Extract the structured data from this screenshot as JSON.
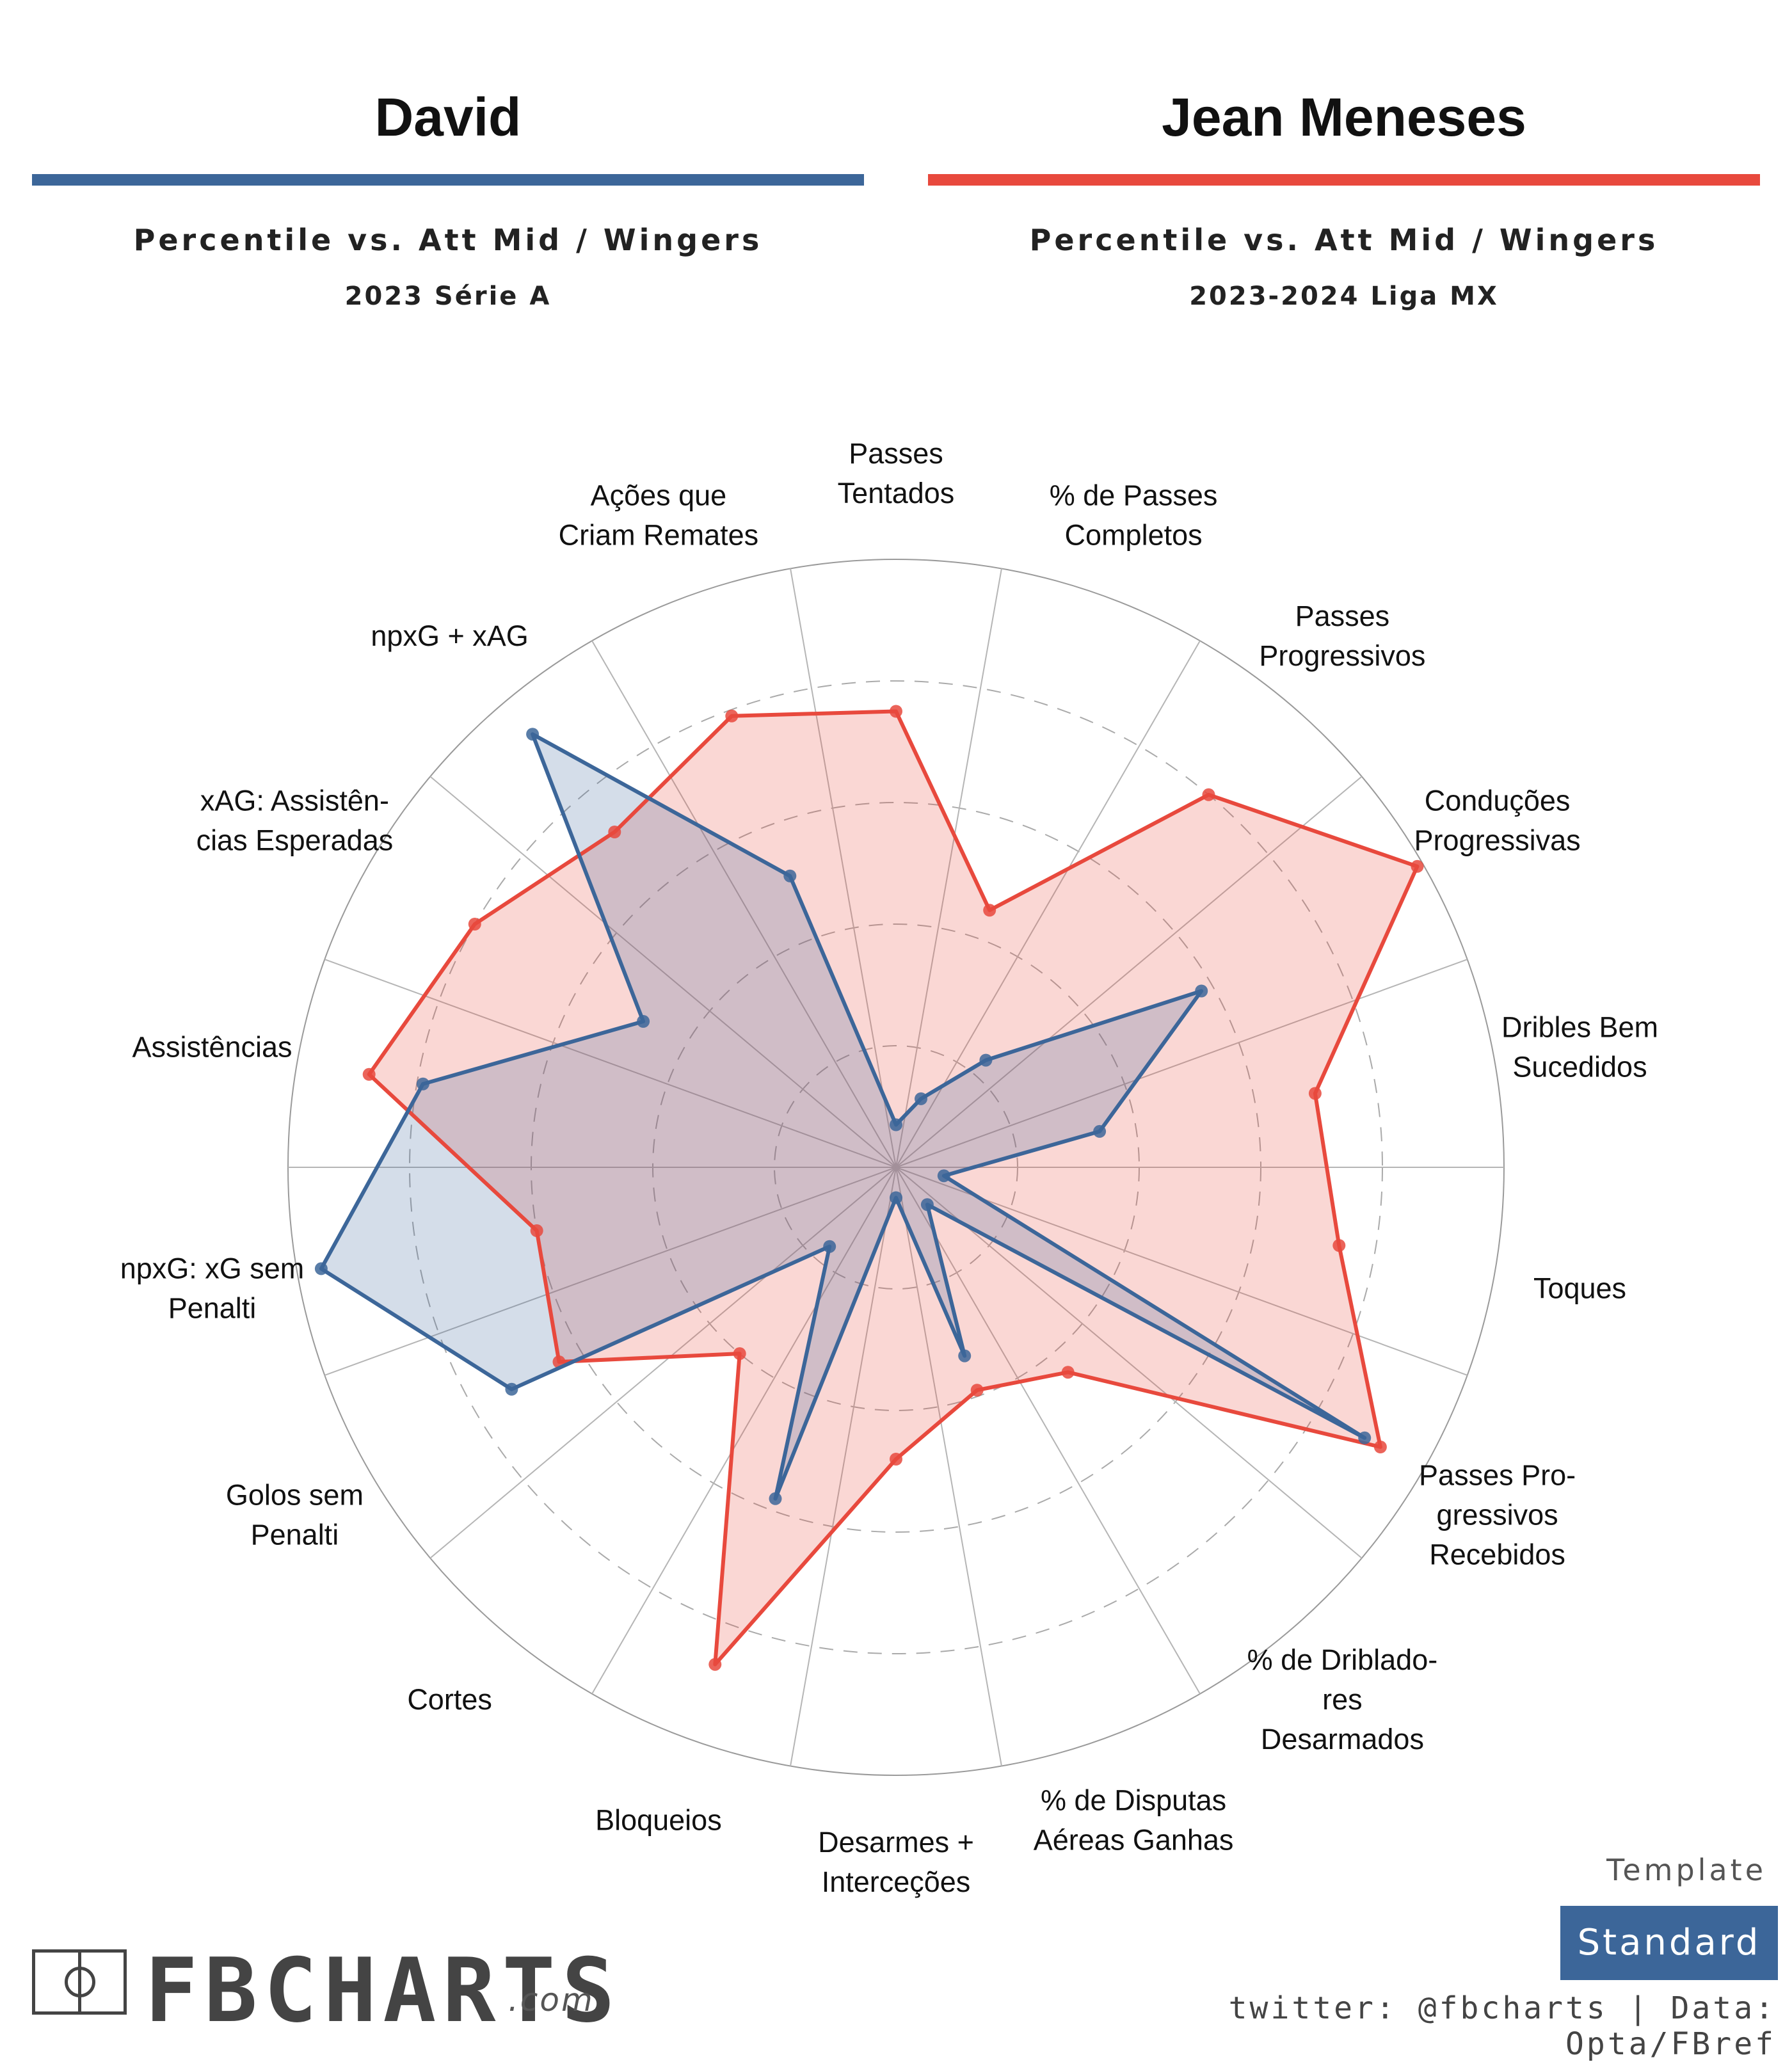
{
  "players": [
    {
      "name": "David",
      "subtitle": "Percentile vs. Att Mid / Wingers",
      "season": "2023 Série A",
      "color": "#3c6699"
    },
    {
      "name": "Jean Meneses",
      "subtitle": "Percentile vs. Att Mid / Wingers",
      "season": "2023-2024 Liga MX",
      "color": "#e8493d"
    }
  ],
  "chart_data": {
    "type": "radar",
    "rlim": [
      0,
      100
    ],
    "grid_rings": [
      20,
      40,
      60,
      80
    ],
    "categories": [
      [
        "Dribles Bem",
        "Sucedidos"
      ],
      [
        "Conduções",
        "Progressivas"
      ],
      [
        "Passes",
        "Progressivos"
      ],
      [
        "% de Passes",
        "Completos"
      ],
      [
        "Passes",
        "Tentados"
      ],
      [
        "Ações que",
        "Criam Remates"
      ],
      [
        "npxG + xAG"
      ],
      [
        "xAG: Assistên-",
        "cias Esperadas"
      ],
      [
        "Assistências"
      ],
      [
        "npxG: xG sem",
        "Penalti"
      ],
      [
        "Golos sem",
        "Penalti"
      ],
      [
        "Cortes"
      ],
      [
        "Bloqueios"
      ],
      [
        "Desarmes +",
        "Interceções"
      ],
      [
        "% de Disputas",
        "Aéreas Ganhas"
      ],
      [
        "% de Driblado-",
        "res",
        "Desarmados"
      ],
      [
        "Passes Pro-",
        "gressivos",
        "Recebidos"
      ],
      [
        "Toques"
      ]
    ],
    "series": [
      {
        "name": "Jean Meneses",
        "color": "#e8493d",
        "values": [
          70,
          99,
          80,
          45,
          75,
          79,
          72,
          80,
          88,
          60,
          64,
          40,
          87,
          48,
          39,
          44,
          92,
          74
        ]
      },
      {
        "name": "David",
        "color": "#3c6699",
        "values": [
          34,
          58,
          23,
          12,
          7,
          51,
          93,
          48,
          79,
          96,
          73,
          17,
          58,
          5,
          33,
          8,
          89,
          8
        ]
      }
    ]
  },
  "footer": {
    "template_label": "Template",
    "template_value": "Standard",
    "credit": "twitter: @fbcharts | Data: Opta/FBref",
    "logo_text": "FBCHARTS",
    "logo_suffix": ".com"
  }
}
